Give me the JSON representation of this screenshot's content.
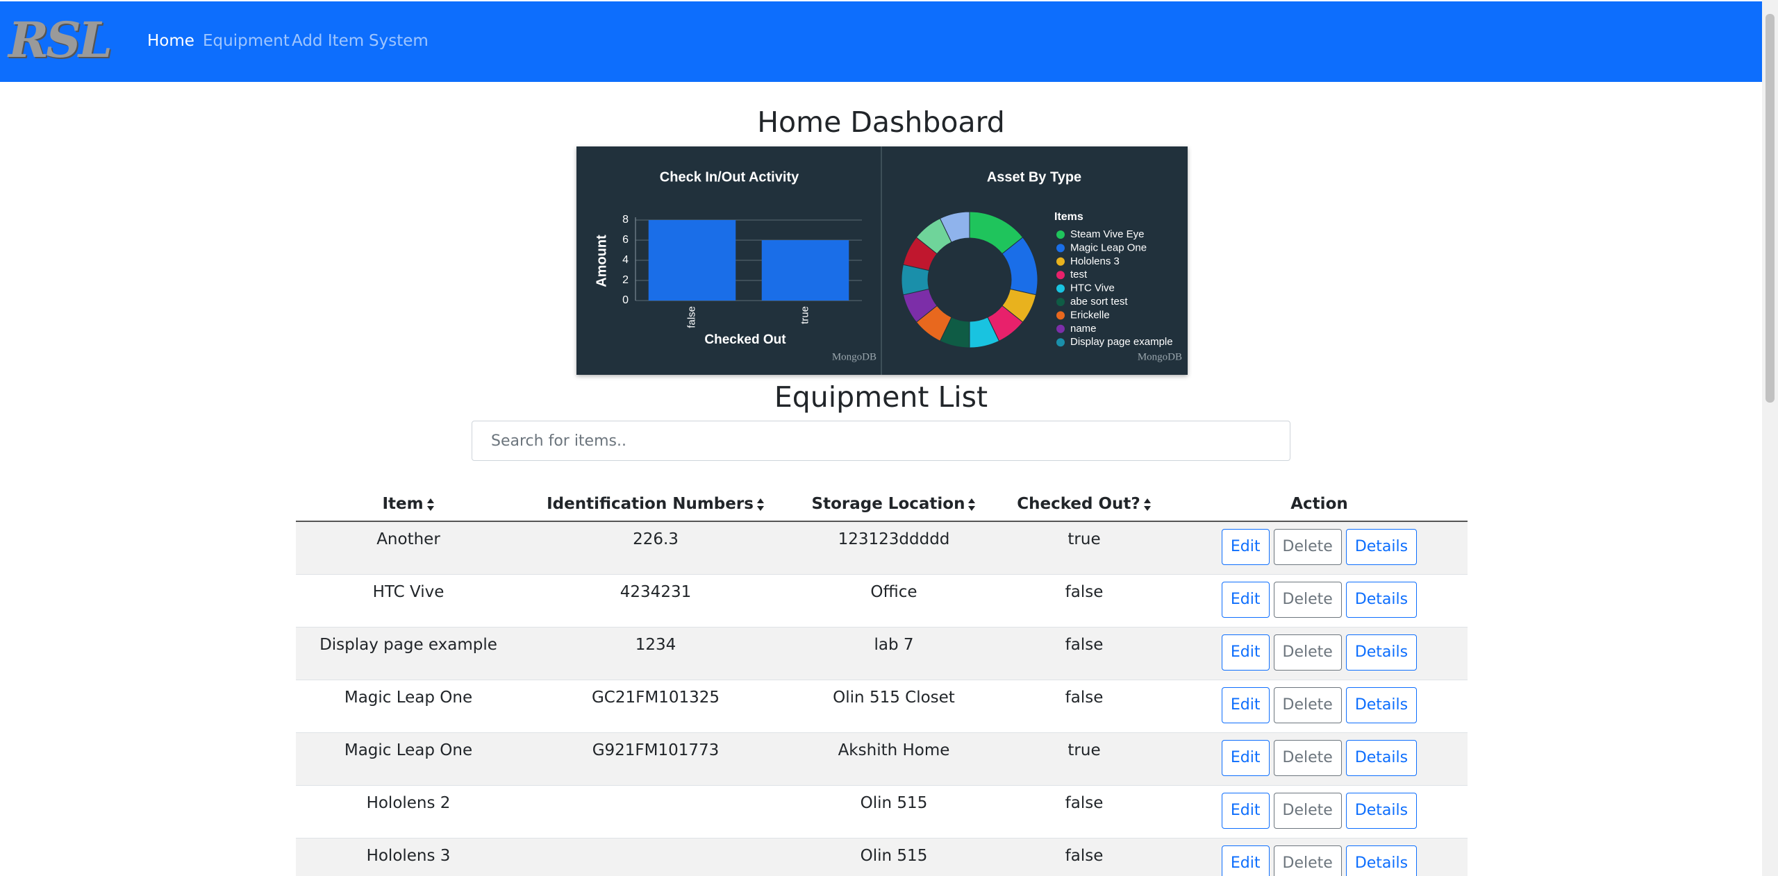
{
  "nav": {
    "logo": "RSL",
    "links": [
      "Home",
      "Equipment",
      "Add Item",
      "System"
    ]
  },
  "dashboard": {
    "title": "Home Dashboard",
    "bar_chart": {
      "type": "bar",
      "title": "Check In/Out Activity",
      "x_label": "Checked Out",
      "y_label": "Amount",
      "categories": [
        "false",
        "true"
      ],
      "values": [
        8,
        6
      ],
      "color": "#1a6ee8",
      "ylim": [
        0,
        8
      ],
      "yticks": [
        0,
        2,
        4,
        6,
        8
      ],
      "grid": true,
      "watermark": "MongoDB"
    },
    "donut_chart": {
      "type": "donut",
      "title": "Asset By Type",
      "legend_title": "Items",
      "categories": [
        "Steam Vive Eye",
        "Magic Leap One",
        "Hololens 3",
        "test",
        "HTC Vive",
        "abe sort test",
        "Erickelle",
        "name",
        "Display page example",
        null,
        null,
        null
      ],
      "values": [
        2,
        2,
        1,
        1,
        1,
        1,
        1,
        1,
        1,
        1,
        1,
        1
      ],
      "colors": [
        "#1fc45c",
        "#1a6ee8",
        "#e8b21e",
        "#e8216b",
        "#19c3e0",
        "#0f5c45",
        "#e8681e",
        "#7c2ea8",
        "#1a8faa",
        "#c0172e",
        "#6fd49a",
        "#8fb3ec"
      ],
      "watermark": "MongoDB"
    }
  },
  "equipment": {
    "title": "Equipment List",
    "search_placeholder": "Search for items..",
    "columns": [
      "Item",
      "Identification Numbers",
      "Storage Location",
      "Checked Out?",
      "Action"
    ],
    "actions": [
      "Edit",
      "Delete",
      "Details"
    ],
    "rows": [
      [
        "Another",
        "226.3",
        "123123ddddd",
        "true"
      ],
      [
        "HTC Vive",
        "4234231",
        "Office",
        "false"
      ],
      [
        "Display page example",
        "1234",
        "lab 7",
        "false"
      ],
      [
        "Magic Leap One",
        "GC21FM101325",
        "Olin 515 Closet",
        "false"
      ],
      [
        "Magic Leap One",
        "G921FM101773",
        "Akshith Home",
        "true"
      ],
      [
        "Hololens 2",
        null,
        "Olin 515",
        "false"
      ],
      [
        "Hololens 3",
        null,
        "Olin 515",
        "false"
      ]
    ]
  }
}
